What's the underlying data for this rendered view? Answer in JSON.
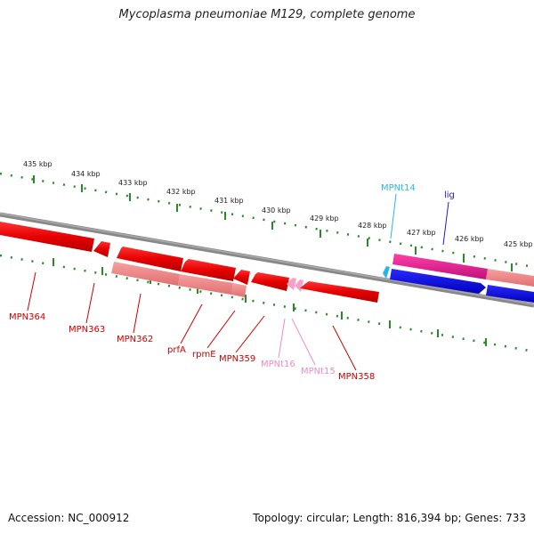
{
  "title": "Mycoplasma pneumoniae M129, complete genome",
  "footer": {
    "accession": "Accession: NC_000912",
    "summary": "Topology: circular; Length: 816,394 bp; Genes: 733"
  },
  "colors": {
    "backbone": "#777777",
    "ticks": "#2a8a2a",
    "cds_forward": "#e60000",
    "cds_light": "#f08080",
    "trna": "#f4a0c8",
    "trna_cyan": "#29b6e6",
    "lig": "#0000ee",
    "magenta": "#e6198c"
  },
  "scale_labels": [
    "435 kbp",
    "434 kbp",
    "433 kbp",
    "432 kbp",
    "431 kbp",
    "430 kbp",
    "429 kbp",
    "428 kbp",
    "427 kbp",
    "426 kbp",
    "425 kbp"
  ],
  "gene_labels": [
    {
      "name": "MPN364",
      "color": "#cc0000"
    },
    {
      "name": "MPN363",
      "color": "#cc0000"
    },
    {
      "name": "MPN362",
      "color": "#cc0000"
    },
    {
      "name": "prfA",
      "color": "#cc0000"
    },
    {
      "name": "rpmE",
      "color": "#cc0000"
    },
    {
      "name": "MPN359",
      "color": "#cc0000"
    },
    {
      "name": "MPNt16",
      "color": "#f08cc0"
    },
    {
      "name": "MPNt15",
      "color": "#f08cc0"
    },
    {
      "name": "MPN358",
      "color": "#cc0000"
    },
    {
      "name": "MPNt14",
      "color": "#29b6e6"
    },
    {
      "name": "lig",
      "color": "#1a1acc"
    }
  ]
}
